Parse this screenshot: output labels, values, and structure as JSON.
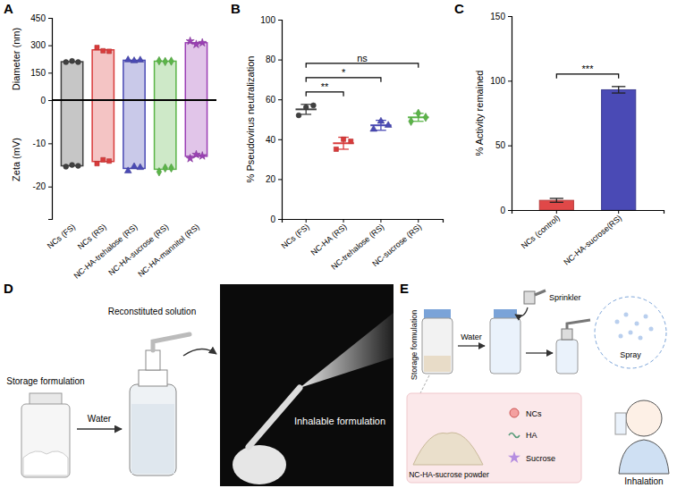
{
  "chart_data": [
    {
      "panel": "A",
      "type": "bar",
      "categories": [
        "NCs (FS)",
        "NCs (RS)",
        "NC-HA-trehalose (RS)",
        "NC-HA-sucrose (RS)",
        "NC-HA-mannitol (RS)"
      ],
      "colors": [
        "#404040",
        "#d93b3b",
        "#4a4ab5",
        "#5bb548",
        "#9b3fb5"
      ],
      "y_label": "Diameter (nm)",
      "y2_label": "Zeta (mV)",
      "ylim": [
        0,
        450
      ],
      "yticks": [
        0,
        150,
        300,
        450
      ],
      "y2lim": [
        -27.5,
        0
      ],
      "y2ticks": [
        -20,
        -10
      ],
      "series": [
        {
          "values": [
            210,
            275,
            218,
            213,
            314
          ],
          "replicates": [
            [
              208,
              214,
              208
            ],
            [
              288,
              270,
              267
            ],
            [
              220,
              215,
              219
            ],
            [
              215,
              211,
              213
            ],
            [
              323,
              305,
              314
            ]
          ]
        },
        {
          "axis": "y2",
          "values": [
            -15.2,
            -14.2,
            -15.8,
            -16.0,
            -13.0
          ],
          "replicates": [
            [
              -15.4,
              -15.0,
              -15.2
            ],
            [
              -14.7,
              -13.8,
              -14.1
            ],
            [
              -16.4,
              -15.4,
              -15.6
            ],
            [
              -16.6,
              -15.7,
              -15.7
            ],
            [
              -13.5,
              -12.6,
              -12.9
            ]
          ]
        }
      ]
    },
    {
      "panel": "B",
      "type": "dot",
      "categories": [
        "NCs (FS)",
        "NC-HA (RS)",
        "NC-trehalose (RS)",
        "NC-sucrose (RS)"
      ],
      "colors": [
        "#404040",
        "#d93b3b",
        "#4a4ab5",
        "#5bb548"
      ],
      "y_label": "% Pseudovirus neutralization",
      "ylim": [
        0,
        100
      ],
      "yticks": [
        0,
        20,
        40,
        60,
        80,
        100
      ],
      "series": [
        {
          "values": [
            55,
            38,
            47,
            51
          ],
          "errors": [
            2.5,
            3,
            2.5,
            2
          ],
          "replicates": [
            [
              52,
              56,
              57
            ],
            [
              35,
              40,
              39
            ],
            [
              45,
              49,
              47
            ],
            [
              49,
              53,
              51
            ]
          ]
        }
      ],
      "significance": [
        {
          "pair": [
            0,
            1
          ],
          "label": "**"
        },
        {
          "pair": [
            0,
            2
          ],
          "label": "*"
        },
        {
          "pair": [
            0,
            3
          ],
          "label": "ns"
        }
      ]
    },
    {
      "panel": "C",
      "type": "bar",
      "categories": [
        "NCs (control)",
        "NC-HA-sucrose(RS)"
      ],
      "colors": [
        "#e04848",
        "#4a4ab5"
      ],
      "y_label": "% Activity remained",
      "ylim": [
        0,
        150
      ],
      "yticks": [
        0,
        50,
        100,
        150
      ],
      "series": [
        {
          "values": [
            7.5,
            93
          ],
          "errors": [
            1.5,
            2.5
          ]
        }
      ],
      "significance": [
        {
          "pair": [
            0,
            1
          ],
          "label": "***"
        }
      ]
    }
  ],
  "photo": {
    "panel": "D",
    "labels": {
      "storage": "Storage formulation",
      "water": "Water",
      "reconstituted": "Reconstituted solution",
      "inhalable": "Inhalable formulation"
    }
  },
  "schematic": {
    "panel": "E",
    "labels": {
      "storage": "Storage formulation",
      "water": "Water",
      "sprinkler": "Sprinkler",
      "spray": "Spray",
      "inhalation": "Inhalation",
      "powder": "NC-HA-sucrose powder",
      "ncs": "NCs",
      "ha": "HA",
      "sucrose": "Sucrose"
    }
  }
}
